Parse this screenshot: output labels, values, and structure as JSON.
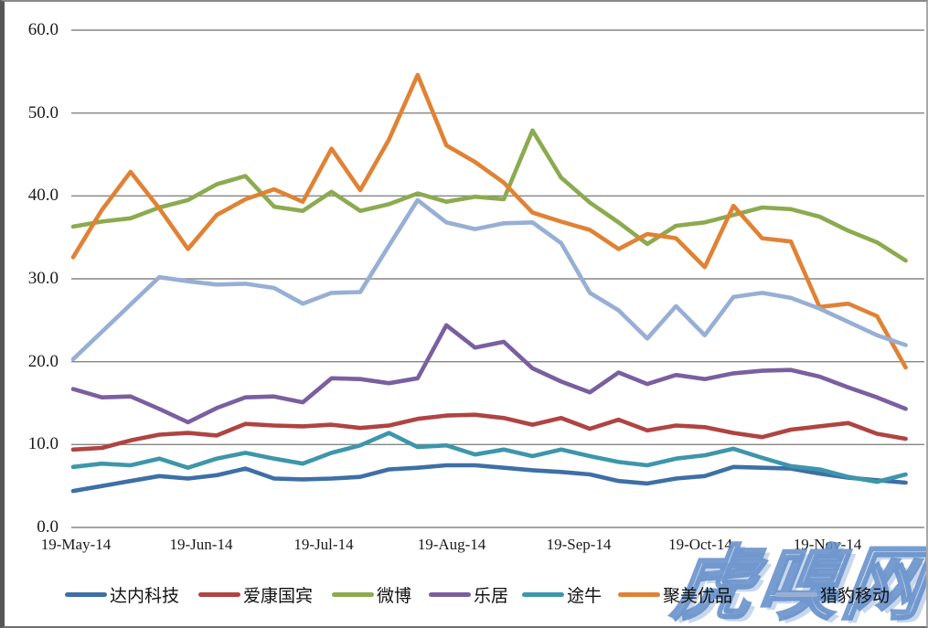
{
  "axes": {
    "y_ticks": [
      "60.0",
      "50.0",
      "40.0",
      "30.0",
      "20.0",
      "10.0",
      "0.0"
    ],
    "x_ticks": [
      "19-May-14",
      "19-Jun-14",
      "19-Jul-14",
      "19-Aug-14",
      "19-Sep-14",
      "19-Oct-14",
      "19-Nov-14"
    ]
  },
  "watermark": "虎嗅网",
  "chart_data": {
    "type": "line",
    "title": "",
    "xlabel": "",
    "ylabel": "",
    "ylim": [
      0,
      60
    ],
    "y_tick_step": 10,
    "grid": "horizontal-only",
    "legend_position": "bottom",
    "x_tick_labels": [
      "19-May-14",
      "19-Jun-14",
      "19-Jul-14",
      "19-Aug-14",
      "19-Sep-14",
      "19-Oct-14",
      "19-Nov-14"
    ],
    "categories": [
      "19-May-14",
      "26-May-14",
      "2-Jun-14",
      "9-Jun-14",
      "16-Jun-14",
      "23-Jun-14",
      "30-Jun-14",
      "7-Jul-14",
      "14-Jul-14",
      "21-Jul-14",
      "28-Jul-14",
      "4-Aug-14",
      "11-Aug-14",
      "18-Aug-14",
      "25-Aug-14",
      "1-Sep-14",
      "8-Sep-14",
      "15-Sep-14",
      "22-Sep-14",
      "29-Sep-14",
      "6-Oct-14",
      "13-Oct-14",
      "20-Oct-14",
      "27-Oct-14",
      "3-Nov-14",
      "10-Nov-14",
      "17-Nov-14",
      "24-Nov-14",
      "1-Dec-14",
      "8-Dec-14"
    ],
    "series": [
      {
        "name": "达内科技",
        "color": "#3E6FA6",
        "values": [
          4.4,
          5.0,
          5.6,
          6.2,
          5.9,
          6.3,
          7.1,
          5.9,
          5.8,
          5.9,
          6.1,
          7.0,
          7.2,
          7.5,
          7.5,
          7.2,
          6.9,
          6.7,
          6.4,
          5.6,
          5.3,
          5.9,
          6.2,
          7.3,
          7.2,
          7.1,
          6.5,
          6.0,
          5.7,
          5.4
        ]
      },
      {
        "name": "爱康国宾",
        "color": "#AF4442",
        "values": [
          9.4,
          9.6,
          10.5,
          11.2,
          11.4,
          11.1,
          12.5,
          12.3,
          12.2,
          12.4,
          12.0,
          12.3,
          13.1,
          13.5,
          13.6,
          13.2,
          12.4,
          13.2,
          11.9,
          13.0,
          11.7,
          12.3,
          12.1,
          11.4,
          10.9,
          11.8,
          12.2,
          12.6,
          11.3,
          10.7
        ]
      },
      {
        "name": "微博",
        "color": "#8CAA4F",
        "values": [
          36.3,
          36.9,
          37.3,
          38.6,
          39.5,
          41.4,
          42.4,
          38.7,
          38.2,
          40.5,
          38.2,
          39.0,
          40.3,
          39.3,
          39.9,
          39.6,
          47.9,
          42.2,
          39.2,
          36.8,
          34.2,
          36.4,
          36.8,
          37.7,
          38.6,
          38.4,
          37.5,
          35.8,
          34.4,
          32.2
        ]
      },
      {
        "name": "乐居",
        "color": "#7A5FA0",
        "values": [
          16.7,
          15.7,
          15.8,
          14.3,
          12.7,
          14.4,
          15.7,
          15.8,
          15.1,
          18.0,
          17.9,
          17.4,
          18.0,
          24.4,
          21.7,
          22.4,
          19.2,
          17.6,
          16.3,
          18.7,
          17.3,
          18.4,
          17.9,
          18.6,
          18.9,
          19.0,
          18.2,
          16.9,
          15.7,
          14.3
        ]
      },
      {
        "name": "途牛",
        "color": "#3D96AA",
        "values": [
          7.3,
          7.7,
          7.5,
          8.3,
          7.2,
          8.3,
          9.0,
          8.3,
          7.7,
          9.0,
          9.9,
          11.4,
          9.7,
          9.9,
          8.8,
          9.4,
          8.6,
          9.4,
          8.6,
          7.9,
          7.5,
          8.3,
          8.7,
          9.5,
          8.4,
          7.4,
          7.0,
          6.1,
          5.5,
          6.4
        ]
      },
      {
        "name": "聚美优品",
        "color": "#E08234",
        "values": [
          32.6,
          38.3,
          42.9,
          38.5,
          33.6,
          37.7,
          39.6,
          40.8,
          39.3,
          45.7,
          40.7,
          46.8,
          54.6,
          46.1,
          44.1,
          41.6,
          38.0,
          36.9,
          35.9,
          33.6,
          35.4,
          34.9,
          31.4,
          38.8,
          34.9,
          34.5,
          26.6,
          27.0,
          25.5,
          19.3
        ]
      },
      {
        "name": "猎豹移动",
        "color": "#97AFD5",
        "values": [
          20.3,
          23.6,
          26.9,
          30.2,
          29.7,
          29.3,
          29.4,
          28.9,
          27.0,
          28.3,
          28.4,
          34.0,
          39.5,
          36.8,
          36.0,
          36.7,
          36.8,
          34.3,
          28.3,
          26.2,
          22.8,
          26.7,
          23.2,
          27.8,
          28.3,
          27.7,
          26.4,
          24.8,
          23.2,
          22.0
        ]
      }
    ]
  }
}
